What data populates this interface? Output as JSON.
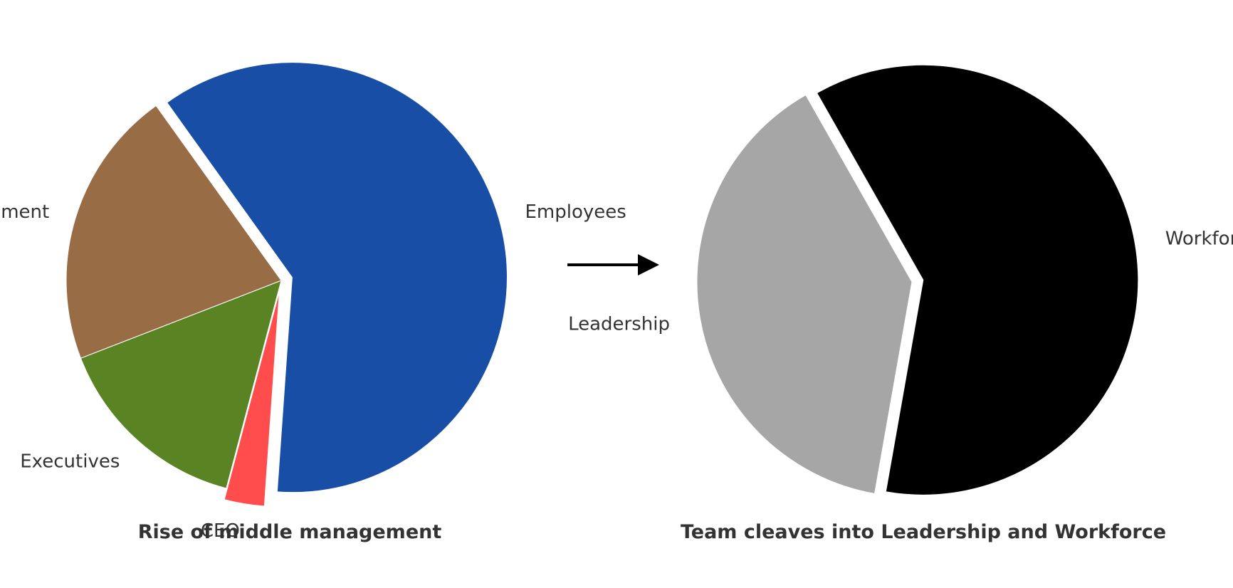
{
  "chart_data": [
    {
      "type": "pie",
      "title": "Rise of middle management",
      "slices": [
        {
          "label": "CEO",
          "value": 3,
          "color": "#ff4d4d",
          "explode": true
        },
        {
          "label": "Executives",
          "value": 15,
          "color": "#5a8424",
          "explode": false
        },
        {
          "label": "Middle management",
          "value": 21,
          "color": "#986c44",
          "explode": false
        },
        {
          "label": "Employees",
          "value": 61,
          "color": "#184ea6",
          "explode": true
        }
      ]
    },
    {
      "type": "pie",
      "title": "Team cleaves into Leadership and Workforce",
      "slices": [
        {
          "label": "Leadership",
          "value": 39,
          "color": "#a6a6a6",
          "explode": false
        },
        {
          "label": "Workforce",
          "value": 61,
          "color": "#000000",
          "explode": true
        }
      ]
    }
  ],
  "transition": {
    "icon": "right-arrow-icon",
    "color": "#000000"
  }
}
